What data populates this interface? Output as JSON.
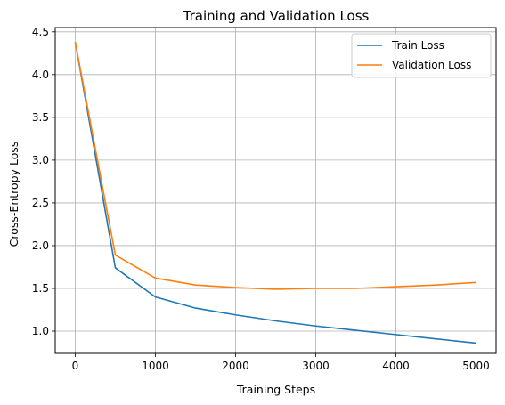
{
  "chart_data": {
    "type": "line",
    "title": "Training and Validation Loss",
    "xlabel": "Training Steps",
    "ylabel": "Cross-Entropy Loss",
    "xlim": [
      -250,
      5250
    ],
    "ylim": [
      0.74,
      4.55
    ],
    "xticks": [
      0,
      1000,
      2000,
      3000,
      4000,
      5000
    ],
    "xtick_labels": [
      "0",
      "1000",
      "2000",
      "3000",
      "4000",
      "5000"
    ],
    "yticks": [
      1.0,
      1.5,
      2.0,
      2.5,
      3.0,
      3.5,
      4.0,
      4.5
    ],
    "ytick_labels": [
      "1.0",
      "1.5",
      "2.0",
      "2.5",
      "3.0",
      "3.5",
      "4.0",
      "4.5"
    ],
    "grid": true,
    "legend_position": "top-right",
    "x": [
      0,
      500,
      1000,
      1500,
      2000,
      2500,
      3000,
      3500,
      4000,
      4500,
      5000
    ],
    "series": [
      {
        "name": "Train Loss",
        "color": "#1f77b4",
        "values": [
          4.38,
          1.74,
          1.4,
          1.27,
          1.19,
          1.12,
          1.06,
          1.01,
          0.96,
          0.91,
          0.86
        ]
      },
      {
        "name": "Validation Loss",
        "color": "#ff7f0e",
        "values": [
          4.38,
          1.89,
          1.62,
          1.54,
          1.51,
          1.49,
          1.5,
          1.5,
          1.52,
          1.54,
          1.57
        ]
      }
    ]
  }
}
